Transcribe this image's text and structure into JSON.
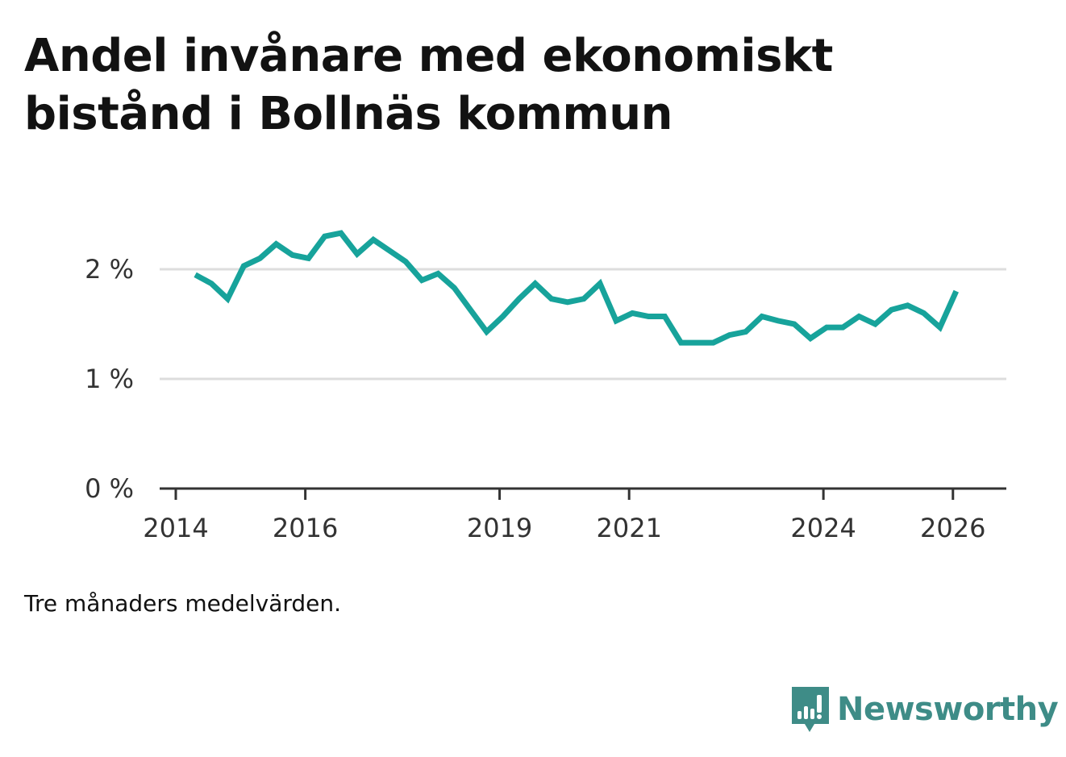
{
  "chart_data": {
    "type": "line",
    "title": "Andel invånare med ekonomiskt bistånd i Bollnäs kommun",
    "note": "Tre månaders medelvärden.",
    "xlabel": "",
    "ylabel": "",
    "x_ticks": [
      "2014",
      "2016",
      "2019",
      "2021",
      "2024",
      "2026"
    ],
    "x_tick_years": [
      2014,
      2016,
      2019,
      2021,
      2024,
      2026
    ],
    "y_ticks": [
      "0 %",
      "1 %",
      "2 %"
    ],
    "y_tick_values": [
      0,
      1,
      2
    ],
    "xlim": [
      2014,
      2026.7
    ],
    "ylim": [
      0,
      2.5
    ],
    "grid": true,
    "line_color": "#17a39b",
    "series": [
      {
        "name": "Andel",
        "x": [
          2014.3,
          2014.55,
          2014.8,
          2015.05,
          2015.3,
          2015.55,
          2015.8,
          2016.05,
          2016.3,
          2016.55,
          2016.8,
          2017.05,
          2017.3,
          2017.55,
          2017.8,
          2018.05,
          2018.3,
          2018.55,
          2018.8,
          2019.05,
          2019.3,
          2019.55,
          2019.8,
          2020.05,
          2020.3,
          2020.55,
          2020.8,
          2021.05,
          2021.3,
          2021.55,
          2021.8,
          2022.05,
          2022.3,
          2022.55,
          2022.8,
          2023.05,
          2023.3,
          2023.55,
          2023.8,
          2024.05,
          2024.3,
          2024.55,
          2024.8,
          2025.05,
          2025.3,
          2025.55,
          2025.8,
          2026.05
        ],
        "values": [
          1.95,
          1.87,
          1.73,
          2.03,
          2.1,
          2.23,
          2.13,
          2.1,
          2.3,
          2.33,
          2.14,
          2.27,
          2.17,
          2.07,
          1.9,
          1.96,
          1.83,
          1.63,
          1.43,
          1.57,
          1.73,
          1.87,
          1.73,
          1.7,
          1.73,
          1.87,
          1.53,
          1.6,
          1.57,
          1.57,
          1.33,
          1.33,
          1.33,
          1.4,
          1.43,
          1.57,
          1.53,
          1.5,
          1.37,
          1.47,
          1.47,
          1.57,
          1.5,
          1.63,
          1.67,
          1.6,
          1.47,
          1.8
        ]
      }
    ]
  },
  "brand": {
    "name": "Newsworthy",
    "logo_icon": "newsworthy-bar-chart-icon",
    "color": "#3e8c87"
  }
}
